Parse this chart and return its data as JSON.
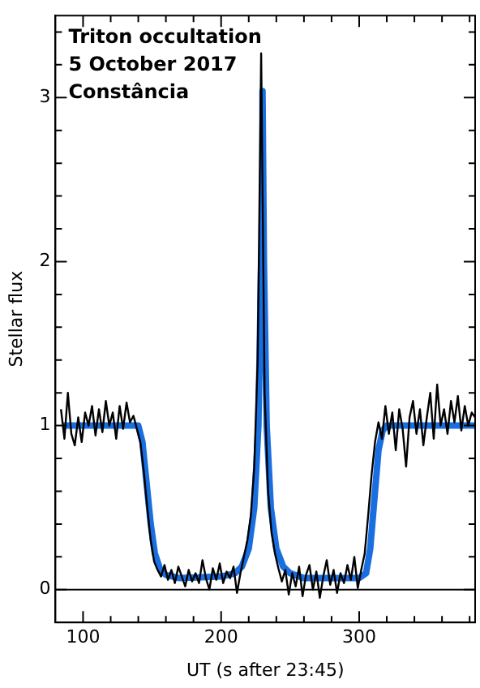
{
  "chart_data": {
    "type": "line",
    "title": "Triton occultation",
    "annotations": [
      "5 October 2017",
      "Constância"
    ],
    "xlabel": "UT (s after 23:45)",
    "ylabel": "Stellar flux",
    "xlim": [
      80,
      384
    ],
    "ylim": [
      -0.2,
      3.5
    ],
    "xticks": [
      {
        "value": 100,
        "label": "100"
      },
      {
        "value": 120,
        "label": null
      },
      {
        "value": 140,
        "label": null
      },
      {
        "value": 160,
        "label": null
      },
      {
        "value": 180,
        "label": null
      },
      {
        "value": 200,
        "label": "200"
      },
      {
        "value": 220,
        "label": null
      },
      {
        "value": 240,
        "label": null
      },
      {
        "value": 260,
        "label": null
      },
      {
        "value": 280,
        "label": null
      },
      {
        "value": 300,
        "label": "300"
      },
      {
        "value": 320,
        "label": null
      },
      {
        "value": 340,
        "label": null
      },
      {
        "value": 360,
        "label": null
      },
      {
        "value": 380,
        "label": null
      }
    ],
    "yticks": [
      {
        "value": 0,
        "label": "0"
      },
      {
        "value": 0.2,
        "label": null
      },
      {
        "value": 0.4,
        "label": null
      },
      {
        "value": 0.6,
        "label": null
      },
      {
        "value": 0.8,
        "label": null
      },
      {
        "value": 1,
        "label": "1"
      },
      {
        "value": 1.2,
        "label": null
      },
      {
        "value": 1.4,
        "label": null
      },
      {
        "value": 1.6,
        "label": null
      },
      {
        "value": 1.8,
        "label": null
      },
      {
        "value": 2,
        "label": "2"
      },
      {
        "value": 2.2,
        "label": null
      },
      {
        "value": 2.4,
        "label": null
      },
      {
        "value": 2.6,
        "label": null
      },
      {
        "value": 2.8,
        "label": null
      },
      {
        "value": 3,
        "label": "3"
      },
      {
        "value": 3.2,
        "label": null
      },
      {
        "value": 3.4,
        "label": null
      }
    ],
    "ref_lines": [
      {
        "axis": "y",
        "value": 0,
        "color": "#000000"
      }
    ],
    "series": [
      {
        "color": "#1a6fe0",
        "x": [
          85,
          140,
          143,
          146,
          149,
          152,
          156,
          160,
          170,
          200,
          210,
          215,
          220,
          224,
          227,
          229,
          230,
          231,
          233,
          236,
          240,
          245,
          250,
          260,
          300,
          305,
          308,
          311,
          314,
          317,
          320,
          384
        ],
        "values": [
          1,
          1,
          0.9,
          0.65,
          0.4,
          0.22,
          0.12,
          0.09,
          0.07,
          0.08,
          0.1,
          0.14,
          0.25,
          0.5,
          1.0,
          2.0,
          3.04,
          2.0,
          1.0,
          0.5,
          0.25,
          0.14,
          0.1,
          0.07,
          0.07,
          0.1,
          0.25,
          0.55,
          0.85,
          0.97,
          1,
          1
        ]
      },
      {
        "color": "#000000",
        "x": [
          84,
          86.5,
          89,
          91.5,
          94,
          96.5,
          99,
          101.5,
          104,
          106.5,
          109,
          111.5,
          114,
          116.5,
          119,
          121.5,
          124,
          126.5,
          129,
          131.5,
          134,
          136.5,
          139,
          141.5,
          144,
          146.5,
          149,
          151.5,
          154,
          156.5,
          159,
          161.5,
          164,
          166.5,
          169,
          171.5,
          174,
          176.5,
          179,
          181.5,
          184,
          186.5,
          189,
          191.5,
          194,
          196.5,
          199,
          201.5,
          204,
          206.5,
          209,
          211.5,
          214,
          216.5,
          219,
          221.5,
          224,
          226.5,
          229,
          231.5,
          234,
          236.5,
          239,
          241.5,
          244,
          246.5,
          249,
          251.5,
          254,
          256.5,
          259,
          261.5,
          264,
          266.5,
          269,
          271.5,
          274,
          276.5,
          279,
          281.5,
          284,
          286.5,
          289,
          291.5,
          294,
          296.5,
          299,
          301.5,
          304,
          306.5,
          309,
          311.5,
          314,
          316.5,
          319,
          321.5,
          324,
          326.5,
          329,
          331.5,
          334,
          336.5,
          339,
          341.5,
          344,
          346.5,
          349,
          351.5,
          354,
          356.5,
          359,
          361.5,
          364,
          366.5,
          369,
          371.5,
          374,
          376.5,
          379,
          381.5,
          384
        ],
        "values": [
          1.1,
          0.92,
          1.2,
          0.95,
          0.88,
          1.05,
          0.9,
          1.08,
          1.0,
          1.12,
          0.94,
          1.1,
          0.96,
          1.15,
          1.0,
          1.08,
          0.92,
          1.12,
          0.98,
          1.14,
          1.02,
          1.06,
          0.98,
          0.9,
          0.72,
          0.5,
          0.3,
          0.17,
          0.12,
          0.08,
          0.15,
          0.06,
          0.12,
          0.04,
          0.14,
          0.08,
          0.02,
          0.12,
          0.05,
          0.1,
          0.04,
          0.18,
          0.07,
          0.0,
          0.13,
          0.06,
          0.16,
          0.04,
          0.11,
          0.07,
          0.14,
          -0.02,
          0.1,
          0.2,
          0.3,
          0.45,
          0.75,
          1.4,
          3.27,
          1.2,
          0.6,
          0.35,
          0.22,
          0.13,
          0.05,
          0.12,
          -0.03,
          0.1,
          0.02,
          0.14,
          -0.04,
          0.09,
          0.15,
          0.0,
          0.11,
          -0.05,
          0.08,
          0.18,
          0.03,
          0.12,
          -0.02,
          0.1,
          0.04,
          0.15,
          0.06,
          0.2,
          0.01,
          0.12,
          0.22,
          0.45,
          0.7,
          0.9,
          1.02,
          0.92,
          1.12,
          0.95,
          1.08,
          0.85,
          1.1,
          0.98,
          0.75,
          1.05,
          1.15,
          0.95,
          1.1,
          0.88,
          1.05,
          1.2,
          0.92,
          1.25,
          1.0,
          1.1,
          0.95,
          1.15,
          1.02,
          1.18,
          0.97,
          1.12,
          1.0,
          1.08,
          1.05
        ]
      }
    ]
  }
}
